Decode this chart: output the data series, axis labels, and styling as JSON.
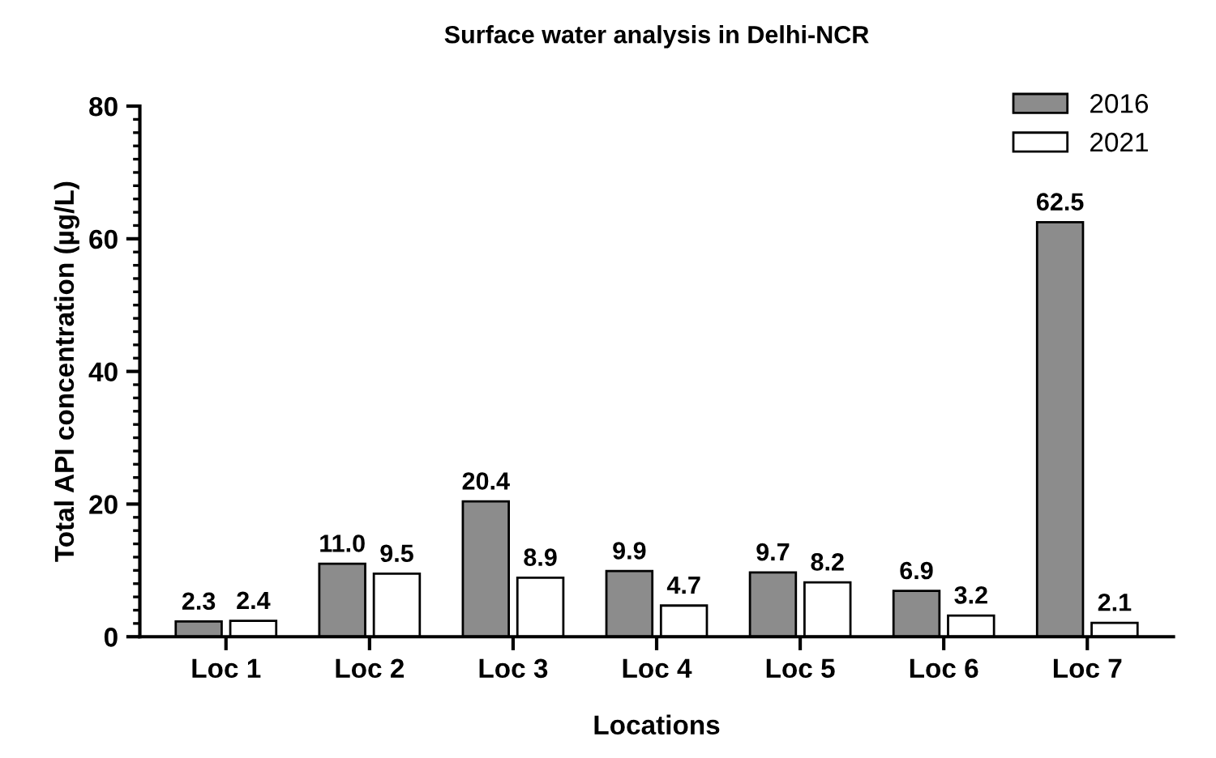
{
  "chart_data": {
    "type": "bar",
    "title": "Surface water analysis in Delhi-NCR",
    "xlabel": "Locations",
    "ylabel": "Total API concentration (µg/L)",
    "categories": [
      "Loc 1",
      "Loc 2",
      "Loc 3",
      "Loc 4",
      "Loc 5",
      "Loc 6",
      "Loc 7"
    ],
    "series": [
      {
        "name": "2016",
        "color": "#8c8c8c",
        "values": [
          2.3,
          11.0,
          20.4,
          9.9,
          9.7,
          6.9,
          62.5
        ],
        "value_labels": [
          "2.3",
          "11.0",
          "20.4",
          "9.9",
          "9.7",
          "6.9",
          "62.5"
        ]
      },
      {
        "name": "2021",
        "color": "#ffffff",
        "values": [
          2.4,
          9.5,
          8.9,
          4.7,
          8.2,
          3.2,
          2.1
        ],
        "value_labels": [
          "2.4",
          "9.5",
          "8.9",
          "4.7",
          "8.2",
          "3.2",
          "2.1"
        ]
      }
    ],
    "ylim": [
      0,
      80
    ],
    "yticks": [
      0,
      20,
      40,
      60,
      80
    ],
    "legend": "top right"
  }
}
